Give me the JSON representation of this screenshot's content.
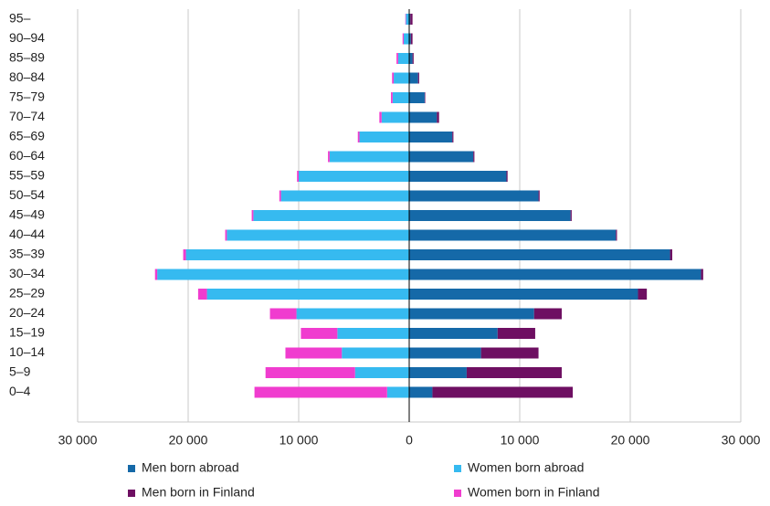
{
  "chart_data": {
    "type": "pyramid",
    "categories": [
      "95–",
      "90–94",
      "85–89",
      "80–84",
      "75–79",
      "70–74",
      "65–69",
      "60–64",
      "55–59",
      "50–54",
      "45–49",
      "40–44",
      "35–39",
      "30–34",
      "25–29",
      "20–24",
      "15–19",
      "10–14",
      "5–9",
      "0–4"
    ],
    "series": [
      {
        "name": "Men born abroad",
        "color": "#1569a8",
        "values": [
          100,
          150,
          300,
          800,
          1400,
          2500,
          3900,
          5800,
          8800,
          11700,
          14600,
          18700,
          23600,
          26400,
          20700,
          11300,
          8000,
          6500,
          5200,
          2100
        ]
      },
      {
        "name": "Women born abroad",
        "color": "#36baf0",
        "values": [
          -300,
          -500,
          -1000,
          -1400,
          -1500,
          -2500,
          -4500,
          -7200,
          -10000,
          -11600,
          -14100,
          -16500,
          -20200,
          -22800,
          -18300,
          -10200,
          -6500,
          -6100,
          -4900,
          -2000
        ]
      },
      {
        "name": "Men born in Finland",
        "color": "#6e0f62",
        "values": [
          200,
          150,
          100,
          100,
          50,
          200,
          100,
          100,
          100,
          100,
          100,
          100,
          200,
          200,
          800,
          2500,
          3400,
          5200,
          8600,
          12700
        ]
      },
      {
        "name": "Women born in Finland",
        "color": "#f03ccf",
        "values": [
          -50,
          -100,
          -150,
          -150,
          -150,
          -200,
          -150,
          -150,
          -150,
          -150,
          -150,
          -150,
          -250,
          -200,
          -800,
          -2400,
          -3300,
          -5100,
          -8100,
          -12000
        ]
      }
    ],
    "xlim": [
      -30000,
      30000
    ],
    "xticks": [
      {
        "value": -30000,
        "label": "30 000"
      },
      {
        "value": -20000,
        "label": "20 000"
      },
      {
        "value": -10000,
        "label": "10 000"
      },
      0,
      {
        "value": 10000,
        "label": "10 000"
      },
      {
        "value": 20000,
        "label": "20 000"
      },
      {
        "value": 30000,
        "label": "30 000"
      }
    ],
    "grid": true
  }
}
